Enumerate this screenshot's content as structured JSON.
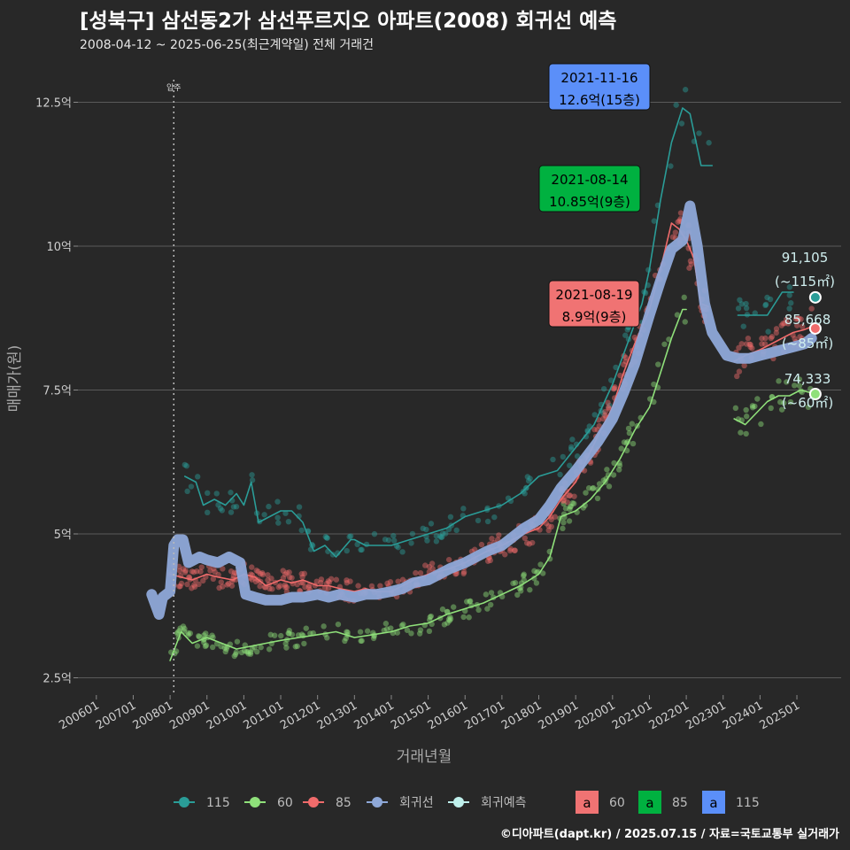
{
  "title": "[성북구] 삼선동2가 삼선푸르지오 아파트(2008) 회귀선 예측",
  "subtitle": "2008-04-12 ~ 2025-06-25(최근계약일) 전체 거래건",
  "footer": "©디아파트(dapt.kr) / 2025.07.15 / 자료=국토교통부 실거래가",
  "chart_data": {
    "type": "line",
    "xlabel": "거래년월",
    "ylabel": "매매가(원)",
    "xlim": [
      2005.5,
      2026.2
    ],
    "ylim": [
      2.2,
      13.2
    ],
    "y_ticks": [
      {
        "value": 2.5,
        "label": "2.5억"
      },
      {
        "value": 5,
        "label": "5억"
      },
      {
        "value": 7.5,
        "label": "7.5억"
      },
      {
        "value": 10,
        "label": "10억"
      },
      {
        "value": 12.5,
        "label": "12.5억"
      }
    ],
    "x_ticks": [
      {
        "value": 2006,
        "label": "200601"
      },
      {
        "value": 2007,
        "label": "200701"
      },
      {
        "value": 2008,
        "label": "200801"
      },
      {
        "value": 2009,
        "label": "200901"
      },
      {
        "value": 2010,
        "label": "201001"
      },
      {
        "value": 2011,
        "label": "201101"
      },
      {
        "value": 2012,
        "label": "201201"
      },
      {
        "value": 2013,
        "label": "201301"
      },
      {
        "value": 2014,
        "label": "201401"
      },
      {
        "value": 2015,
        "label": "201501"
      },
      {
        "value": 2016,
        "label": "201601"
      },
      {
        "value": 2017,
        "label": "201701"
      },
      {
        "value": 2018,
        "label": "201801"
      },
      {
        "value": 2019,
        "label": "201901"
      },
      {
        "value": 2020,
        "label": "202001"
      },
      {
        "value": 2021,
        "label": "202101"
      },
      {
        "value": 2022,
        "label": "202201"
      },
      {
        "value": 2023,
        "label": "202301"
      },
      {
        "value": 2024,
        "label": "202401"
      },
      {
        "value": 2025,
        "label": "202501"
      }
    ],
    "move_in": {
      "x": 2008.1,
      "label": "입주"
    },
    "series": [
      {
        "name": "115",
        "color": "#2a9d98",
        "x": [
          2008.4,
          2008.7,
          2008.9,
          2009.2,
          2009.5,
          2009.8,
          2010.0,
          2010.2,
          2010.4,
          2011.0,
          2011.3,
          2011.6,
          2011.9,
          2012.2,
          2012.5,
          2012.9,
          2013.0,
          2013.3,
          2013.7,
          2014.0,
          2014.5,
          2015.0,
          2015.5,
          2016.0,
          2016.5,
          2017.0,
          2017.5,
          2018.0,
          2018.5,
          2019.0,
          2019.5,
          2020.0,
          2020.4,
          2020.8,
          2021.0,
          2021.3,
          2021.6,
          2021.9,
          2022.1,
          2022.4,
          2022.7,
          2023.0,
          2023.4,
          2023.8,
          2024.2,
          2024.6,
          2024.9
        ],
        "values": [
          6.0,
          5.9,
          5.5,
          5.6,
          5.5,
          5.7,
          5.5,
          5.9,
          5.2,
          5.4,
          5.4,
          5.2,
          4.7,
          4.8,
          4.6,
          4.9,
          4.9,
          4.8,
          4.8,
          4.8,
          4.9,
          5.0,
          5.1,
          5.3,
          5.4,
          5.5,
          5.7,
          6.0,
          6.1,
          6.5,
          6.9,
          7.6,
          8.3,
          9.0,
          9.6,
          10.8,
          11.8,
          12.4,
          12.3,
          11.4,
          11.4,
          null,
          8.8,
          8.8,
          8.8,
          9.2,
          9.2
        ]
      },
      {
        "name": "60",
        "color": "#8fe07a",
        "x": [
          2008.0,
          2008.3,
          2008.6,
          2009.0,
          2009.4,
          2009.8,
          2010.2,
          2010.6,
          2011.0,
          2011.5,
          2012.0,
          2012.5,
          2013.0,
          2013.5,
          2014.0,
          2014.5,
          2015.0,
          2015.5,
          2016.0,
          2016.5,
          2017.0,
          2017.5,
          2018.0,
          2018.3,
          2018.6,
          2019.0,
          2019.4,
          2019.8,
          2020.2,
          2020.6,
          2021.0,
          2021.3,
          2021.6,
          2021.9,
          2022.0,
          2022.3,
          2022.7,
          2023.3,
          2023.6,
          2023.9,
          2024.2,
          2024.5,
          2024.8,
          2025.1,
          2025.4
        ],
        "values": [
          2.8,
          3.3,
          3.1,
          3.2,
          3.1,
          3.0,
          3.05,
          3.1,
          3.15,
          3.2,
          3.25,
          3.3,
          3.2,
          3.25,
          3.3,
          3.4,
          3.45,
          3.6,
          3.7,
          3.8,
          3.95,
          4.1,
          4.3,
          4.6,
          5.3,
          5.4,
          5.6,
          5.9,
          6.3,
          6.8,
          7.2,
          7.8,
          8.4,
          8.9,
          8.9,
          null,
          null,
          7.0,
          6.9,
          7.1,
          7.3,
          7.4,
          7.4,
          7.5,
          7.45
        ]
      },
      {
        "name": "85",
        "color": "#f06b6b",
        "x": [
          2008.0,
          2008.3,
          2008.6,
          2009.0,
          2009.3,
          2009.7,
          2010.0,
          2010.3,
          2010.6,
          2011.0,
          2011.3,
          2011.6,
          2012.0,
          2012.3,
          2012.6,
          2013.0,
          2013.3,
          2013.6,
          2014.0,
          2014.3,
          2014.6,
          2015.0,
          2015.3,
          2015.6,
          2016.0,
          2016.3,
          2016.6,
          2017.0,
          2017.3,
          2017.6,
          2018.0,
          2018.3,
          2018.6,
          2019.0,
          2019.3,
          2019.6,
          2020.0,
          2020.3,
          2020.6,
          2021.0,
          2021.3,
          2021.6,
          2021.8,
          2022.0,
          2022.2,
          2022.4,
          2022.6,
          2022.9,
          2023.3,
          2023.6,
          2024.0,
          2024.3,
          2024.6,
          2024.9,
          2025.2,
          2025.4
        ],
        "values": [
          4.3,
          4.25,
          4.2,
          4.3,
          4.25,
          4.2,
          4.3,
          4.25,
          4.1,
          4.2,
          4.15,
          4.2,
          4.1,
          4.1,
          4.05,
          4.0,
          4.05,
          4.0,
          4.0,
          4.1,
          4.2,
          4.3,
          4.35,
          4.4,
          4.5,
          4.6,
          4.7,
          4.8,
          4.9,
          5.0,
          5.1,
          5.3,
          5.6,
          5.9,
          6.3,
          6.7,
          7.2,
          7.8,
          8.3,
          8.9,
          9.6,
          10.4,
          10.3,
          10.1,
          9.8,
          9.0,
          8.95,
          null,
          8.0,
          8.1,
          8.2,
          8.3,
          8.4,
          8.5,
          8.55,
          8.6
        ]
      },
      {
        "name": "회귀선",
        "color": "#8ea8d8",
        "x": [
          2007.5,
          2007.7,
          2007.8,
          2008.0,
          2008.1,
          2008.2,
          2008.35,
          2008.5,
          2008.8,
          2009.0,
          2009.3,
          2009.6,
          2009.9,
          2010.05,
          2010.3,
          2010.6,
          2011.0,
          2011.3,
          2011.6,
          2012.0,
          2012.3,
          2012.6,
          2013.0,
          2013.3,
          2013.6,
          2014.0,
          2014.3,
          2014.6,
          2015.0,
          2015.3,
          2015.6,
          2016.0,
          2016.3,
          2016.6,
          2017.0,
          2017.3,
          2017.6,
          2018.0,
          2018.3,
          2018.6,
          2019.0,
          2019.3,
          2019.6,
          2020.0,
          2020.3,
          2020.6,
          2021.0,
          2021.3,
          2021.6,
          2021.9,
          2022.1,
          2022.3,
          2022.5,
          2022.7,
          2022.9,
          2023.1,
          2023.4,
          2023.7,
          2024.0,
          2024.3,
          2024.6,
          2024.9,
          2025.2,
          2025.4
        ],
        "values": [
          3.95,
          3.6,
          3.9,
          4.0,
          4.8,
          4.9,
          4.9,
          4.5,
          4.6,
          4.55,
          4.5,
          4.6,
          4.5,
          3.95,
          3.9,
          3.85,
          3.85,
          3.9,
          3.9,
          3.95,
          3.9,
          3.95,
          3.9,
          3.95,
          3.95,
          4.0,
          4.05,
          4.15,
          4.2,
          4.3,
          4.4,
          4.5,
          4.6,
          4.7,
          4.8,
          4.95,
          5.1,
          5.25,
          5.5,
          5.8,
          6.1,
          6.35,
          6.6,
          7.0,
          7.45,
          7.95,
          8.8,
          9.4,
          9.95,
          10.1,
          10.7,
          10.0,
          9.0,
          8.5,
          8.3,
          8.1,
          8.05,
          8.05,
          8.1,
          8.15,
          8.2,
          8.25,
          8.3,
          8.4
        ]
      }
    ],
    "forecast_points": [
      {
        "series": "115",
        "x": 2025.5,
        "y": 9.11,
        "value_label": "91,105",
        "size_label": "(~115㎡)"
      },
      {
        "series": "85",
        "x": 2025.5,
        "y": 8.57,
        "value_label": "85,668",
        "size_label": "(~85㎡)"
      },
      {
        "series": "60",
        "x": 2025.5,
        "y": 7.43,
        "value_label": "74,333",
        "size_label": "(~60㎡)"
      }
    ],
    "annotations": [
      {
        "date": "2021-11-16",
        "text": "12.6억(15층)",
        "color": "#5b8ff9",
        "x": 2021.88,
        "y": 12.6
      },
      {
        "date": "2021-08-14",
        "text": "10.85억(9층)",
        "color": "#00b140",
        "x": 2021.62,
        "y": 10.85
      },
      {
        "date": "2021-08-19",
        "text": "8.9억(9층)",
        "color": "#f07373",
        "x": 2021.63,
        "y": 8.9
      }
    ],
    "legend": {
      "items": [
        {
          "label": "115",
          "color": "#2a9d98"
        },
        {
          "label": "60",
          "color": "#8fe07a"
        },
        {
          "label": "85",
          "color": "#f06b6b"
        },
        {
          "label": "회귀선",
          "color": "#8ea8d8"
        },
        {
          "label": "회귀예측",
          "color": "#bff0ec"
        }
      ],
      "box_items": [
        {
          "glyph": "a",
          "label": "60",
          "color": "#f07373"
        },
        {
          "glyph": "a",
          "label": "85",
          "color": "#00b140"
        },
        {
          "glyph": "a",
          "label": "115",
          "color": "#5b8ff9"
        }
      ]
    }
  }
}
